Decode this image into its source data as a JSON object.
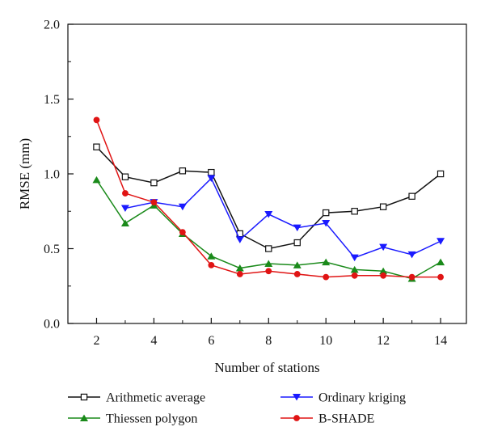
{
  "chart_data": {
    "type": "line",
    "title": "",
    "xlabel": "Number of stations",
    "ylabel": "RMSE (mm)",
    "xlim": [
      1.0,
      14.9
    ],
    "ylim": [
      0.0,
      2.0
    ],
    "x_ticks": [
      2,
      4,
      6,
      8,
      10,
      12,
      14
    ],
    "y_ticks": [
      0.0,
      0.5,
      1.0,
      1.5,
      2.0
    ],
    "y_tick_labels": [
      "0.0",
      "0.5",
      "1.0",
      "1.5",
      "2.0"
    ],
    "legend_position": "bottom, two columns below the plot",
    "series": [
      {
        "name": "Arithmetic average",
        "color": "#111111",
        "marker": "open-square",
        "x": [
          2,
          3,
          4,
          5,
          6,
          7,
          8,
          9,
          10,
          11,
          12,
          13,
          14
        ],
        "values": [
          1.18,
          0.98,
          0.94,
          1.02,
          1.01,
          0.6,
          0.5,
          0.54,
          0.74,
          0.75,
          0.78,
          0.85,
          1.0
        ]
      },
      {
        "name": "Ordinary kriging",
        "color": "#1a1aff",
        "marker": "filled-down-triangle",
        "x": [
          3,
          4,
          5,
          6,
          7,
          8,
          9,
          10,
          11,
          12,
          13,
          14
        ],
        "values": [
          0.77,
          0.81,
          0.78,
          0.97,
          0.56,
          0.73,
          0.64,
          0.67,
          0.44,
          0.51,
          0.46,
          0.55
        ]
      },
      {
        "name": "Thiessen polygon",
        "color": "#1a8a1a",
        "marker": "filled-up-triangle",
        "x": [
          2,
          3,
          4,
          5,
          6,
          7,
          8,
          9,
          10,
          11,
          12,
          13,
          14
        ],
        "values": [
          0.96,
          0.67,
          0.79,
          0.6,
          0.45,
          0.37,
          0.4,
          0.39,
          0.41,
          0.36,
          0.35,
          0.3,
          0.41
        ]
      },
      {
        "name": "B-SHADE",
        "color": "#e01414",
        "marker": "filled-circle",
        "x": [
          2,
          3,
          4,
          5,
          6,
          7,
          8,
          9,
          10,
          11,
          12,
          13,
          14
        ],
        "values": [
          1.36,
          0.87,
          0.81,
          0.61,
          0.39,
          0.33,
          0.35,
          0.33,
          0.31,
          0.32,
          0.32,
          0.31,
          0.31
        ]
      }
    ]
  }
}
